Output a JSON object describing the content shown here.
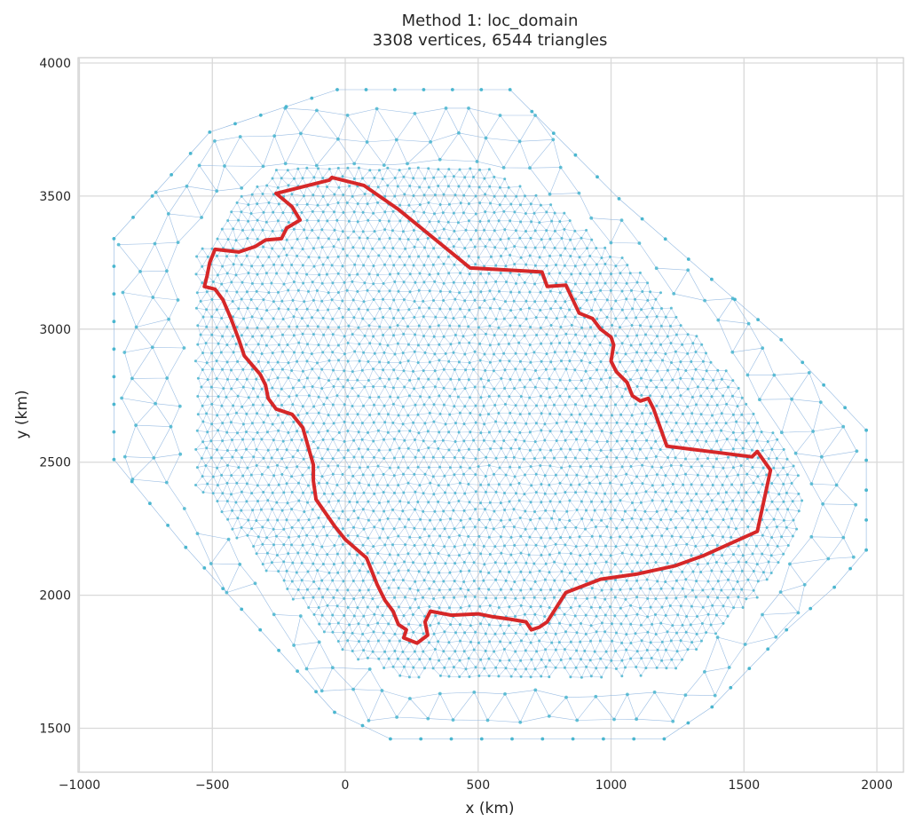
{
  "chart_data": {
    "type": "mesh",
    "title": "Method 1: loc_domain",
    "subtitle": "3308 vertices, 6544 triangles",
    "xlabel": "x (km)",
    "ylabel": "y (km)",
    "xlim": [
      -1005,
      2100
    ],
    "ylim": [
      1335,
      4020
    ],
    "xticks": [
      -1000,
      -500,
      0,
      500,
      1000,
      1500,
      2000
    ],
    "xtick_labels": [
      "−1000",
      "−500",
      "0",
      "500",
      "1000",
      "1500",
      "2000"
    ],
    "yticks": [
      1500,
      2000,
      2500,
      3000,
      3500,
      4000
    ],
    "ytick_labels": [
      "1500",
      "2000",
      "2500",
      "3000",
      "3500",
      "4000"
    ],
    "grid": true,
    "mesh": {
      "vertex_count": 3308,
      "triangle_count": 6544,
      "outer_hull": [
        [
          -30,
          3900
        ],
        [
          620,
          3900
        ],
        [
          1030,
          3490
        ],
        [
          1640,
          2960
        ],
        [
          1960,
          2620
        ],
        [
          1960,
          2170
        ],
        [
          1840,
          2030
        ],
        [
          1660,
          1870
        ],
        [
          1380,
          1580
        ],
        [
          1200,
          1460
        ],
        [
          170,
          1460
        ],
        [
          -40,
          1560
        ],
        [
          -600,
          2180
        ],
        [
          -870,
          2510
        ],
        [
          -870,
          3340
        ],
        [
          -510,
          3740
        ]
      ],
      "inner_region": [
        [
          -240,
          3610
        ],
        [
          560,
          3610
        ],
        [
          820,
          3450
        ],
        [
          1110,
          3230
        ],
        [
          1560,
          2700
        ],
        [
          1720,
          2440
        ],
        [
          1720,
          2240
        ],
        [
          1560,
          2000
        ],
        [
          1250,
          1720
        ],
        [
          1140,
          1690
        ],
        [
          200,
          1690
        ],
        [
          0,
          1780
        ],
        [
          -350,
          2140
        ],
        [
          -570,
          2420
        ],
        [
          -570,
          3280
        ],
        [
          -380,
          3520
        ]
      ],
      "vertex_color": "#4ab6cf",
      "edge_color": "#8fb6e0"
    },
    "boundary": {
      "color": "#d62728",
      "points": [
        [
          -260,
          3510
        ],
        [
          -60,
          3560
        ],
        [
          -50,
          3570
        ],
        [
          70,
          3540
        ],
        [
          200,
          3450
        ],
        [
          470,
          3230
        ],
        [
          740,
          3215
        ],
        [
          760,
          3160
        ],
        [
          830,
          3165
        ],
        [
          880,
          3060
        ],
        [
          930,
          3040
        ],
        [
          960,
          3000
        ],
        [
          1000,
          2970
        ],
        [
          1010,
          2940
        ],
        [
          1000,
          2880
        ],
        [
          1020,
          2840
        ],
        [
          1060,
          2800
        ],
        [
          1080,
          2750
        ],
        [
          1110,
          2730
        ],
        [
          1140,
          2740
        ],
        [
          1160,
          2700
        ],
        [
          1210,
          2560
        ],
        [
          1370,
          2540
        ],
        [
          1530,
          2520
        ],
        [
          1550,
          2540
        ],
        [
          1600,
          2470
        ],
        [
          1550,
          2240
        ],
        [
          1350,
          2150
        ],
        [
          1240,
          2110
        ],
        [
          1100,
          2080
        ],
        [
          960,
          2060
        ],
        [
          830,
          2010
        ],
        [
          760,
          1900
        ],
        [
          730,
          1880
        ],
        [
          700,
          1870
        ],
        [
          680,
          1900
        ],
        [
          620,
          1910
        ],
        [
          550,
          1920
        ],
        [
          500,
          1930
        ],
        [
          400,
          1925
        ],
        [
          320,
          1940
        ],
        [
          300,
          1900
        ],
        [
          310,
          1850
        ],
        [
          270,
          1820
        ],
        [
          220,
          1840
        ],
        [
          230,
          1870
        ],
        [
          200,
          1890
        ],
        [
          180,
          1940
        ],
        [
          150,
          1980
        ],
        [
          120,
          2040
        ],
        [
          80,
          2140
        ],
        [
          0,
          2210
        ],
        [
          -40,
          2260
        ],
        [
          -110,
          2360
        ],
        [
          -120,
          2430
        ],
        [
          -120,
          2490
        ],
        [
          -160,
          2630
        ],
        [
          -200,
          2680
        ],
        [
          -260,
          2700
        ],
        [
          -290,
          2740
        ],
        [
          -300,
          2790
        ],
        [
          -320,
          2830
        ],
        [
          -380,
          2900
        ],
        [
          -400,
          2960
        ],
        [
          -430,
          3040
        ],
        [
          -460,
          3110
        ],
        [
          -490,
          3150
        ],
        [
          -530,
          3160
        ],
        [
          -520,
          3200
        ],
        [
          -510,
          3250
        ],
        [
          -490,
          3300
        ],
        [
          -400,
          3290
        ],
        [
          -340,
          3310
        ],
        [
          -300,
          3335
        ],
        [
          -240,
          3340
        ],
        [
          -220,
          3380
        ],
        [
          -170,
          3410
        ],
        [
          -200,
          3460
        ],
        [
          -260,
          3510
        ]
      ]
    }
  }
}
